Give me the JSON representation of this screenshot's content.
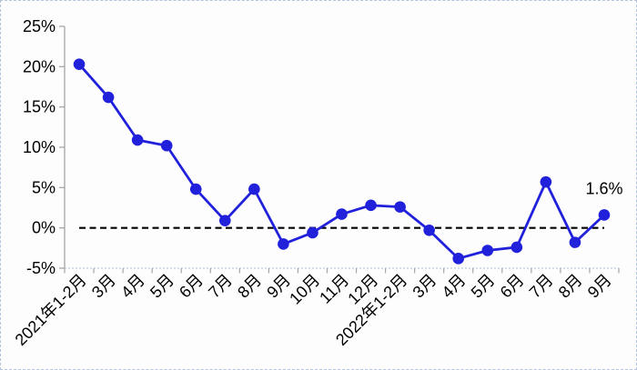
{
  "chart_data": {
    "type": "line",
    "title": "",
    "xlabel": "",
    "ylabel": "",
    "categories": [
      "2021年1-2月",
      "3月",
      "4月",
      "5月",
      "6月",
      "7月",
      "8月",
      "9月",
      "10月",
      "11月",
      "12月",
      "2022年1-2月",
      "3月",
      "4月",
      "5月",
      "6月",
      "7月",
      "8月",
      "9月"
    ],
    "values": [
      20.3,
      16.2,
      10.9,
      10.2,
      4.8,
      0.9,
      4.8,
      -2.0,
      -0.6,
      1.7,
      2.8,
      2.6,
      -0.3,
      -3.8,
      -2.8,
      -2.4,
      5.7,
      -1.8,
      1.6
    ],
    "ylim": [
      -5,
      25
    ],
    "y_tick_step": 5,
    "y_tick_labels": [
      "25%",
      "20%",
      "15%",
      "10%",
      "5%",
      "0%",
      "-5%"
    ],
    "grid": "off",
    "legend": "none",
    "zero_line": {
      "style": "dashed",
      "color": "#000000"
    },
    "annotation": {
      "text": "1.6%",
      "attach_index": 18
    },
    "marker": "circle"
  },
  "colors": {
    "line": "#2121dc",
    "marker": "#2121dc",
    "axis": "#a6a6a6",
    "baseline_dotted": "#bccce6",
    "text": "#000000",
    "zero_line": "#000000",
    "frame_border": "#b5c3dc",
    "background": "#fdfdfd"
  }
}
